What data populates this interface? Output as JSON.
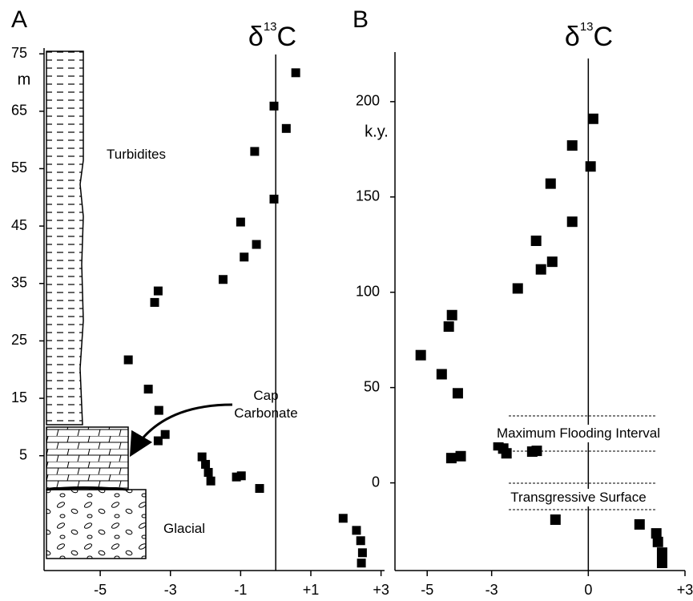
{
  "chart_data": [
    {
      "type": "scatter",
      "panel_label": "A",
      "title": {
        "symbol": "δ",
        "superscript": "13",
        "letter": "C"
      },
      "y_unit_label": "m",
      "annotations": [
        "Turbidites",
        "Cap Carbonate",
        "Glacial"
      ],
      "color": "#000000",
      "xlim": [
        -6.6,
        3.1
      ],
      "ylim": [
        -15,
        76
      ],
      "xticks": [
        -5,
        -3,
        -1,
        {
          "value": 1,
          "label": "+1"
        },
        {
          "value": 3,
          "label": "+3"
        }
      ],
      "yticks": [
        5,
        15,
        25,
        35,
        45,
        55,
        65,
        75
      ],
      "x": [
        0.57,
        -0.05,
        0.3,
        -0.6,
        -0.05,
        -1.0,
        -0.55,
        -0.9,
        -1.5,
        -3.35,
        -3.45,
        -4.2,
        -3.63,
        -3.33,
        -3.15,
        -3.35,
        -2.1,
        -2.0,
        -1.92,
        -1.85,
        -1.12,
        -0.98,
        -0.46,
        1.92,
        2.3,
        2.42,
        2.47,
        2.44
      ],
      "y": [
        71.7,
        65.9,
        62,
        58,
        49.7,
        45.7,
        41.8,
        39.6,
        35.7,
        33.7,
        31.7,
        21.7,
        16.6,
        12.9,
        8.7,
        7.6,
        4.8,
        3.5,
        2.1,
        0.6,
        1.3,
        1.5,
        -0.7,
        -5.9,
        -8.0,
        -9.8,
        -11.9,
        -13.7
      ]
    },
    {
      "type": "scatter",
      "panel_label": "B",
      "title": {
        "symbol": "δ",
        "superscript": "13",
        "letter": "C"
      },
      "y_unit_label": "k.y.",
      "annotations": [
        "Maximum Flooding Interval",
        "Transgressive Surface"
      ],
      "color": "#000000",
      "xlim": [
        -6.0,
        3.0
      ],
      "ylim": [
        -46,
        226
      ],
      "xticks": [
        -5,
        -3,
        0,
        {
          "value": 3,
          "label": "+3"
        }
      ],
      "yticks": [
        0,
        50,
        100,
        150,
        200
      ],
      "x": [
        0.15,
        0.07,
        -0.5,
        -0.5,
        -1.17,
        -1.62,
        -1.47,
        -1.12,
        -2.19,
        -4.23,
        -4.33,
        -5.2,
        -4.55,
        -4.05,
        -4.25,
        -3.96,
        -2.79,
        -2.64,
        -2.54,
        -1.74,
        -1.6,
        -1.02,
        1.59,
        2.11,
        2.16,
        2.29,
        2.29
      ],
      "y": [
        191,
        166,
        177,
        137,
        157,
        127,
        112,
        116,
        102,
        88,
        82,
        67,
        57,
        47,
        13,
        14,
        19.7,
        18,
        15.5,
        16.4,
        16.8,
        -19.3,
        -21.8,
        -26.5,
        -31,
        -36.6,
        -42
      ]
    }
  ]
}
